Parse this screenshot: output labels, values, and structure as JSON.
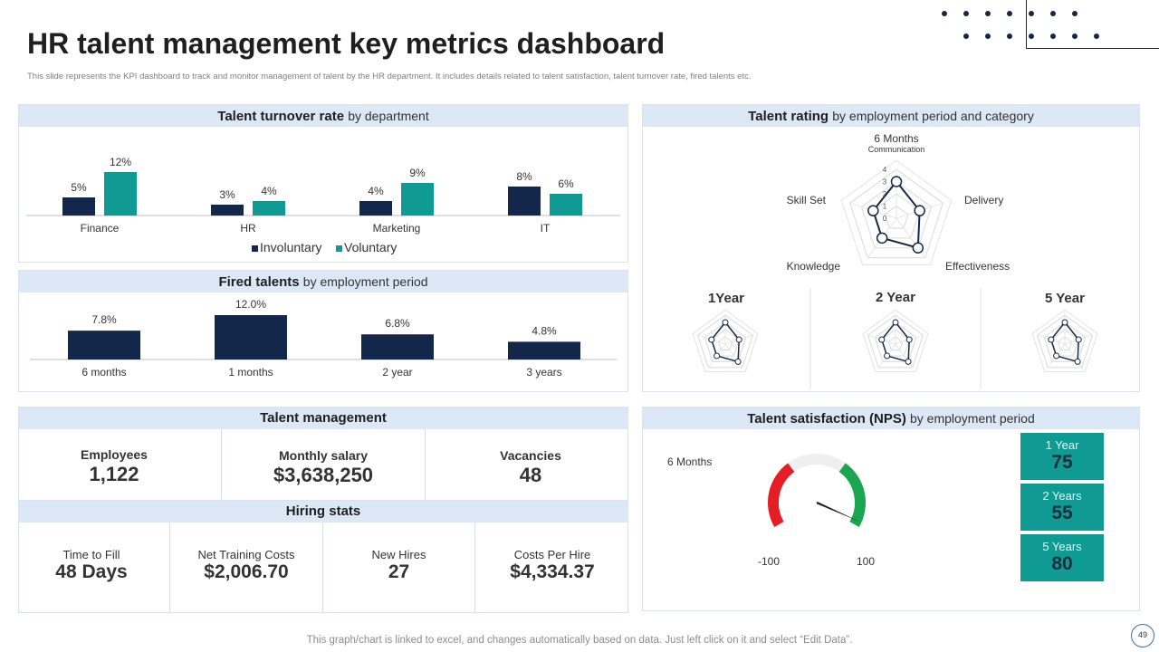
{
  "title": "HR talent management key metrics dashboard",
  "subtitle": "This slide represents the KPI dashboard to track and monitor management of talent by the HR department. It includes details related to talent satisfaction, talent turnover rate, fired talents etc.",
  "colors": {
    "navy": "#12274a",
    "teal": "#0f9b94",
    "header_bg": "#dde8f6",
    "red": "#e31e24",
    "green": "#1aa550",
    "gray": "#efefef"
  },
  "turnover": {
    "title": "Talent turnover rate",
    "title_suffix": "by department",
    "legend": [
      "Involuntary",
      "Voluntary"
    ]
  },
  "fired": {
    "title": "Fired talents",
    "title_suffix": "by employment period"
  },
  "rating": {
    "title": "Talent rating",
    "title_suffix": "by employment period and category",
    "main_label": "6 Months",
    "small_labels": [
      "1Year",
      "2 Year",
      "5 Year"
    ]
  },
  "talent_mgmt": {
    "title": "Talent management",
    "items": [
      {
        "label": "Employees",
        "value": "1,122"
      },
      {
        "label": "Monthly salary",
        "value": "$3,638,250"
      },
      {
        "label": "Vacancies",
        "value": "48"
      }
    ]
  },
  "hiring": {
    "title": "Hiring stats",
    "items": [
      {
        "label": "Time to Fill",
        "value": "48 Days"
      },
      {
        "label": "Net Training Costs",
        "value": "$2,006.70"
      },
      {
        "label": "New Hires",
        "value": "27"
      },
      {
        "label": "Costs Per Hire",
        "value": "$4,334.37"
      }
    ]
  },
  "nps": {
    "title": "Talent satisfaction (NPS)",
    "title_suffix": "by employment period",
    "gauge_label": "6 Months",
    "min_label": "-100",
    "max_label": "100",
    "boxes": [
      {
        "label": "1 Year",
        "value": "75"
      },
      {
        "label": "2 Years",
        "value": "55"
      },
      {
        "label": "5 Years",
        "value": "80"
      }
    ]
  },
  "footer": "This graph/chart is linked to excel,  and changes automatically based on data. Just left click on it and select “Edit Data”.",
  "page_number": "49",
  "chart_data": [
    {
      "type": "bar",
      "title": "Talent turnover rate by department",
      "categories": [
        "Finance",
        "HR",
        "Marketing",
        "IT"
      ],
      "series": [
        {
          "name": "Involuntary",
          "values": [
            5,
            3,
            4,
            8
          ],
          "labels": [
            "5%",
            "3%",
            "4%",
            "8%"
          ]
        },
        {
          "name": "Voluntary",
          "values": [
            12,
            4,
            9,
            6
          ],
          "labels": [
            "12%",
            "4%",
            "9%",
            "6%"
          ]
        }
      ],
      "ylim": [
        0,
        12
      ]
    },
    {
      "type": "bar",
      "title": "Fired talents by employment period",
      "categories": [
        "6 months",
        "1 months",
        "2 year",
        "3 years"
      ],
      "values": [
        7.8,
        12.0,
        6.8,
        4.8
      ],
      "labels": [
        "7.8%",
        "12.0%",
        "6.8%",
        "4.8%"
      ],
      "ylim": [
        0,
        12
      ]
    },
    {
      "type": "radar",
      "title": "Talent rating 6 Months",
      "axes": [
        "Communication",
        "Delivery",
        "Effectiveness",
        "Knowledge",
        "Skill Set"
      ],
      "values": [
        3,
        2,
        3,
        2,
        2
      ],
      "rmax": 4,
      "ticks": [
        "0",
        "1",
        "2",
        "3",
        "4"
      ]
    },
    {
      "type": "gauge",
      "title": "Talent satisfaction (NPS) 6 Months",
      "range": [
        -100,
        100
      ],
      "segments": [
        {
          "from": -100,
          "to": -30,
          "color": "red"
        },
        {
          "from": -30,
          "to": 30,
          "color": "gray"
        },
        {
          "from": 30,
          "to": 100,
          "color": "green"
        }
      ],
      "value": 95
    }
  ]
}
